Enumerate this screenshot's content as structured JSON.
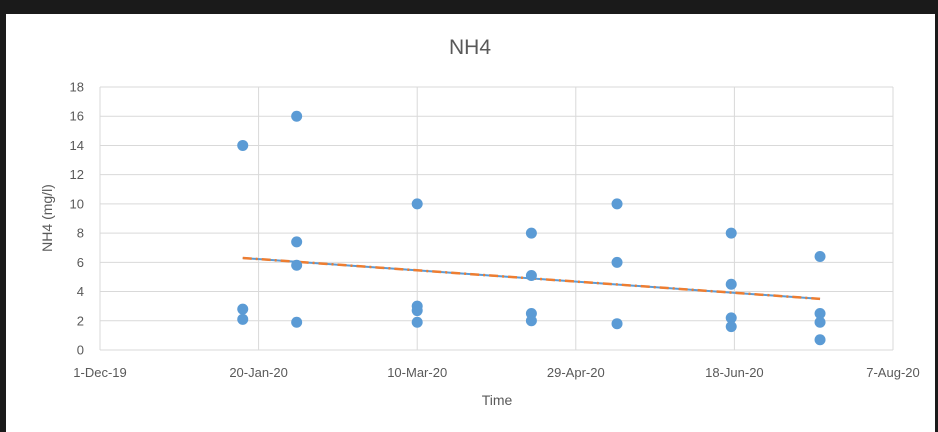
{
  "chart_data": {
    "type": "scatter",
    "title": "NH4",
    "xlabel": "Time",
    "ylabel": "NH4 (mg/l)",
    "xlim": [
      "2019-12-01",
      "2020-08-07"
    ],
    "x_ticks": [
      "1-Dec-19",
      "20-Jan-20",
      "10-Mar-20",
      "29-Apr-20",
      "18-Jun-20",
      "7-Aug-20"
    ],
    "x_tick_dates": [
      "2019-12-01",
      "2020-01-20",
      "2020-03-10",
      "2020-04-29",
      "2020-06-18",
      "2020-08-07"
    ],
    "ylim": [
      0,
      18
    ],
    "y_ticks": [
      0,
      2,
      4,
      6,
      8,
      10,
      12,
      14,
      16,
      18
    ],
    "grid": true,
    "legend": "none",
    "series": [
      {
        "color": "#5b9bd5",
        "points": [
          {
            "x": "2020-01-15",
            "y": 14
          },
          {
            "x": "2020-01-15",
            "y": 2.8
          },
          {
            "x": "2020-01-15",
            "y": 2.1
          },
          {
            "x": "2020-02-01",
            "y": 16
          },
          {
            "x": "2020-02-01",
            "y": 7.4
          },
          {
            "x": "2020-02-01",
            "y": 5.8
          },
          {
            "x": "2020-02-01",
            "y": 1.9
          },
          {
            "x": "2020-03-10",
            "y": 10
          },
          {
            "x": "2020-03-10",
            "y": 3.0
          },
          {
            "x": "2020-03-10",
            "y": 2.7
          },
          {
            "x": "2020-03-10",
            "y": 1.9
          },
          {
            "x": "2020-04-15",
            "y": 8
          },
          {
            "x": "2020-04-15",
            "y": 5.1
          },
          {
            "x": "2020-04-15",
            "y": 2.5
          },
          {
            "x": "2020-04-15",
            "y": 2.0
          },
          {
            "x": "2020-05-12",
            "y": 10
          },
          {
            "x": "2020-05-12",
            "y": 6.0
          },
          {
            "x": "2020-05-12",
            "y": 1.8
          },
          {
            "x": "2020-06-17",
            "y": 8
          },
          {
            "x": "2020-06-17",
            "y": 4.5
          },
          {
            "x": "2020-06-17",
            "y": 2.2
          },
          {
            "x": "2020-06-17",
            "y": 1.6
          },
          {
            "x": "2020-07-15",
            "y": 6.4
          },
          {
            "x": "2020-07-15",
            "y": 2.5
          },
          {
            "x": "2020-07-15",
            "y": 1.9
          },
          {
            "x": "2020-07-15",
            "y": 0.7
          }
        ]
      }
    ],
    "trendline": {
      "type": "linear",
      "colors": [
        "#5b9bd5",
        "#ed7d31"
      ],
      "points": [
        {
          "x": "2020-01-15",
          "y": 6.3
        },
        {
          "x": "2020-07-15",
          "y": 3.5
        }
      ]
    }
  }
}
